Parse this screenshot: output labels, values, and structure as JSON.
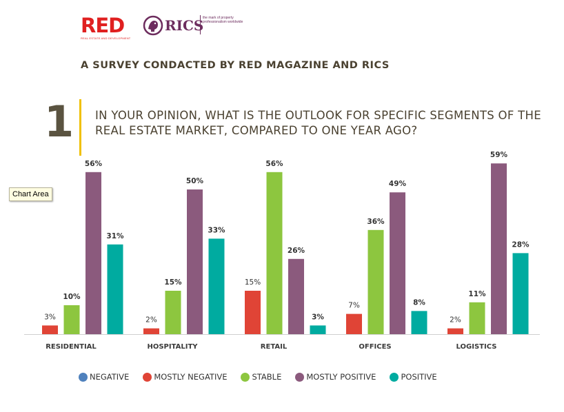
{
  "logos": {
    "red": {
      "text": "RED",
      "subtitle": "REAL ESTATE AND DEVELOPMENT"
    },
    "rics": {
      "name": "RICS",
      "tagline": "the mark of property professionalism worldwide"
    }
  },
  "survey_title": "A SURVEY CONDACTED BY RED MAGAZINE AND RICS",
  "question": {
    "number": "1",
    "text": "IN YOUR OPINION, WHAT IS THE OUTLOOK FOR SPECIFIC SEGMENTS OF THE REAL ESTATE MARKET, COMPARED TO ONE YEAR AGO?"
  },
  "tooltip": "Chart Area",
  "colors": {
    "negative": "#4f81bd",
    "mostly_negative": "#e04436",
    "stable": "#8dc63f",
    "mostly_positive": "#8b5a7d",
    "positive": "#00aba0",
    "accent_bar": "#f0c000"
  },
  "chart_data": {
    "type": "bar",
    "categories": [
      "RESIDENTIAL",
      "HOSPITALITY",
      "RETAIL",
      "OFFICES",
      "LOGISTICS"
    ],
    "series": [
      {
        "name": "NEGATIVE",
        "color": "#4f81bd",
        "values": [
          0,
          0,
          0,
          0,
          0
        ],
        "labels": [
          "",
          "",
          "",
          "",
          ""
        ],
        "label_weight": "bold"
      },
      {
        "name": "MOSTLY NEGATIVE",
        "color": "#e04436",
        "values": [
          3,
          2,
          15,
          7,
          2
        ],
        "labels": [
          "3%",
          "2%",
          "15%",
          "7%",
          "2%"
        ],
        "label_weight": "normal"
      },
      {
        "name": "STABLE",
        "color": "#8dc63f",
        "values": [
          10,
          15,
          56,
          36,
          11
        ],
        "labels": [
          "10%",
          "15%",
          "56%",
          "36%",
          "11%"
        ],
        "label_weight": "bold"
      },
      {
        "name": "MOSTLY POSITIVE",
        "color": "#8b5a7d",
        "values": [
          56,
          50,
          26,
          49,
          59
        ],
        "labels": [
          "56%",
          "50%",
          "26%",
          "49%",
          "59%"
        ],
        "label_weight": "bold"
      },
      {
        "name": "POSITIVE",
        "color": "#00aba0",
        "values": [
          31,
          33,
          3,
          8,
          28
        ],
        "labels": [
          "31%",
          "33%",
          "3%",
          "8%",
          "28%"
        ],
        "label_weight": "bold"
      }
    ],
    "ylim": [
      0,
      60
    ],
    "legend_position": "bottom",
    "grid": false
  }
}
